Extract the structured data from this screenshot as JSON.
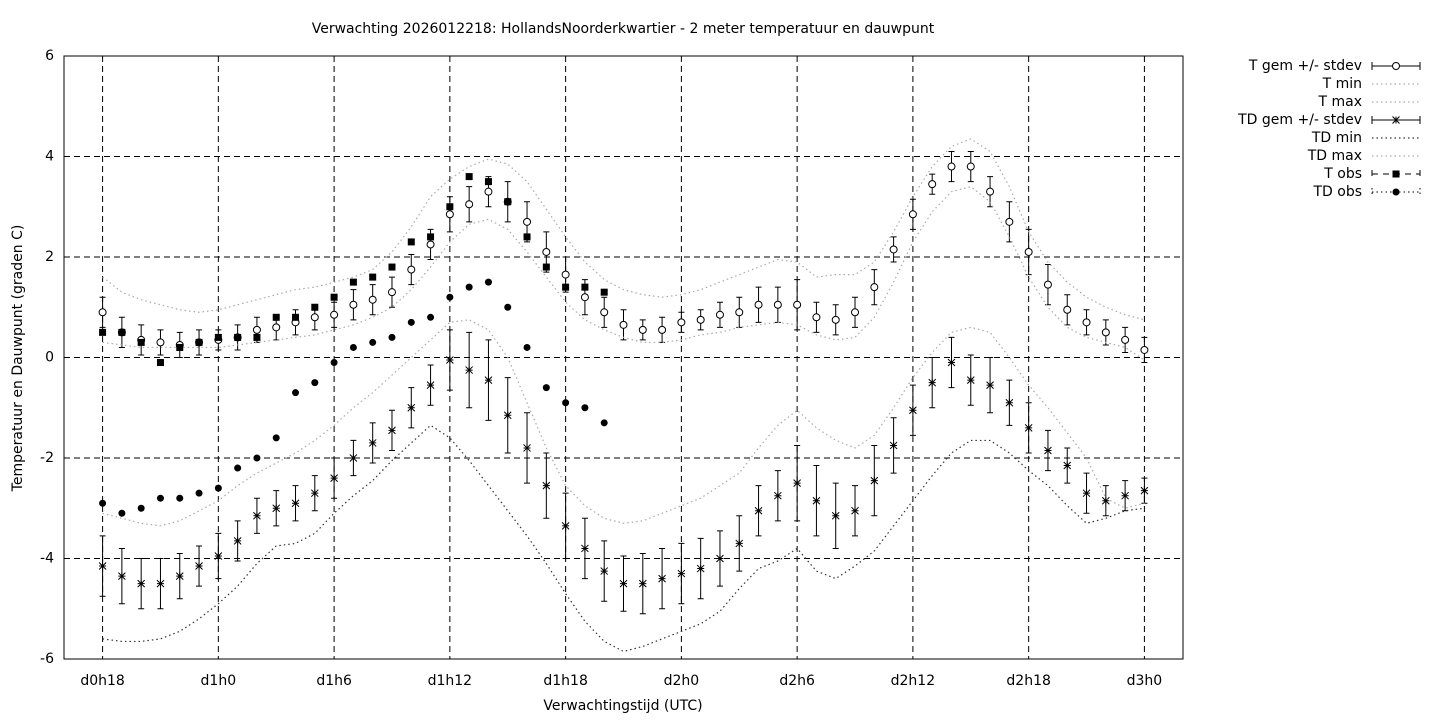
{
  "chart_data": {
    "type": "line",
    "title": "Verwachting 2026012218: HollandsNoorderkwartier - 2 meter temperatuur en dauwpunt",
    "x_label": "Verwachtingstijd (UTC)",
    "y_label": "Temperatuur en Dauwpunt (graden C)",
    "xlim": [
      16,
      74
    ],
    "ylim": [
      -6,
      6
    ],
    "xticks": [
      {
        "value": 18,
        "label": "d0h18"
      },
      {
        "value": 24,
        "label": "d1h0"
      },
      {
        "value": 30,
        "label": "d1h6"
      },
      {
        "value": 36,
        "label": "d1h12"
      },
      {
        "value": 42,
        "label": "d1h18"
      },
      {
        "value": 48,
        "label": "d2h0"
      },
      {
        "value": 54,
        "label": "d2h6"
      },
      {
        "value": 60,
        "label": "d2h12"
      },
      {
        "value": 66,
        "label": "d2h18"
      },
      {
        "value": 72,
        "label": "d3h0"
      }
    ],
    "yticks": [
      -6,
      -4,
      -2,
      0,
      2,
      4,
      6
    ],
    "grid": true,
    "legend": "outside-right-top",
    "x": [
      18,
      19,
      20,
      21,
      22,
      23,
      24,
      25,
      26,
      27,
      28,
      29,
      30,
      31,
      32,
      33,
      34,
      35,
      36,
      37,
      38,
      39,
      40,
      41,
      42,
      43,
      44,
      45,
      46,
      47,
      48,
      49,
      50,
      51,
      52,
      53,
      54,
      55,
      56,
      57,
      58,
      59,
      60,
      61,
      62,
      63,
      64,
      65,
      66,
      67,
      68,
      69,
      70,
      71,
      72
    ],
    "series": [
      {
        "name": "T gem +/- stdev",
        "color": "#000000",
        "style": "errorbar",
        "marker": "open-circle",
        "values": [
          0.9,
          0.5,
          0.35,
          0.3,
          0.25,
          0.3,
          0.35,
          0.4,
          0.55,
          0.6,
          0.7,
          0.8,
          0.85,
          1.05,
          1.15,
          1.3,
          1.75,
          2.25,
          2.85,
          3.05,
          3.3,
          3.1,
          2.7,
          2.1,
          1.65,
          1.2,
          0.9,
          0.65,
          0.55,
          0.55,
          0.7,
          0.75,
          0.85,
          0.9,
          1.05,
          1.05,
          1.05,
          0.8,
          0.75,
          0.9,
          1.4,
          2.15,
          2.85,
          3.45,
          3.8,
          3.8,
          3.3,
          2.7,
          2.1,
          1.45,
          0.95,
          0.7,
          0.5,
          0.35,
          0.15
        ],
        "errors": [
          0.3,
          0.3,
          0.3,
          0.25,
          0.25,
          0.25,
          0.2,
          0.25,
          0.25,
          0.25,
          0.25,
          0.25,
          0.25,
          0.3,
          0.3,
          0.3,
          0.3,
          0.3,
          0.35,
          0.35,
          0.3,
          0.4,
          0.4,
          0.4,
          0.35,
          0.35,
          0.3,
          0.3,
          0.2,
          0.25,
          0.2,
          0.2,
          0.25,
          0.3,
          0.35,
          0.35,
          0.5,
          0.3,
          0.3,
          0.3,
          0.35,
          0.25,
          0.3,
          0.2,
          0.3,
          0.3,
          0.3,
          0.4,
          0.45,
          0.4,
          0.3,
          0.25,
          0.25,
          0.25,
          0.25
        ]
      },
      {
        "name": "T min",
        "color": "#aaaaaa",
        "style": "dotted",
        "values": [
          0.3,
          0.25,
          0.2,
          0.2,
          0.2,
          0.2,
          0.2,
          0.25,
          0.3,
          0.35,
          0.4,
          0.45,
          0.55,
          0.65,
          0.8,
          1.0,
          1.35,
          1.8,
          2.3,
          2.65,
          2.75,
          2.55,
          2.1,
          1.6,
          1.1,
          0.75,
          0.55,
          0.4,
          0.3,
          0.3,
          0.35,
          0.45,
          0.5,
          0.6,
          0.65,
          0.7,
          0.65,
          0.45,
          0.35,
          0.4,
          0.8,
          1.5,
          2.3,
          2.9,
          3.3,
          3.4,
          3.1,
          2.4,
          1.6,
          1.0,
          0.6,
          0.4,
          0.3,
          0.2,
          -0.05
        ]
      },
      {
        "name": "T max",
        "color": "#aaaaaa",
        "style": "dotted",
        "values": [
          1.6,
          1.3,
          1.15,
          1.05,
          0.95,
          0.9,
          0.95,
          1.05,
          1.15,
          1.25,
          1.35,
          1.4,
          1.5,
          1.6,
          1.75,
          2.1,
          2.6,
          3.2,
          3.55,
          3.8,
          3.95,
          3.85,
          3.5,
          2.95,
          2.4,
          1.9,
          1.55,
          1.35,
          1.25,
          1.2,
          1.25,
          1.35,
          1.5,
          1.65,
          1.8,
          1.95,
          1.9,
          1.6,
          1.65,
          1.65,
          1.9,
          2.5,
          3.2,
          3.8,
          4.2,
          4.35,
          4.1,
          3.4,
          2.5,
          1.9,
          1.5,
          1.2,
          1.0,
          0.85,
          0.75
        ]
      },
      {
        "name": "TD gem +/- stdev",
        "color": "#000000",
        "style": "errorbar",
        "marker": "asterisk",
        "values": [
          -4.15,
          -4.35,
          -4.5,
          -4.5,
          -4.35,
          -4.15,
          -3.95,
          -3.65,
          -3.15,
          -3.0,
          -2.9,
          -2.7,
          -2.4,
          -2.0,
          -1.7,
          -1.45,
          -1.0,
          -0.55,
          -0.05,
          -0.25,
          -0.45,
          -1.15,
          -1.8,
          -2.55,
          -3.35,
          -3.8,
          -4.25,
          -4.5,
          -4.5,
          -4.4,
          -4.3,
          -4.2,
          -4.0,
          -3.7,
          -3.05,
          -2.75,
          -2.5,
          -2.85,
          -3.15,
          -3.05,
          -2.45,
          -1.75,
          -1.05,
          -0.5,
          -0.1,
          -0.45,
          -0.55,
          -0.9,
          -1.4,
          -1.85,
          -2.15,
          -2.7,
          -2.85,
          -2.75,
          -2.65
        ],
        "errors": [
          0.6,
          0.55,
          0.5,
          0.5,
          0.45,
          0.4,
          0.45,
          0.4,
          0.35,
          0.35,
          0.35,
          0.35,
          0.4,
          0.35,
          0.4,
          0.4,
          0.4,
          0.4,
          0.6,
          0.75,
          0.8,
          0.75,
          0.7,
          0.65,
          0.65,
          0.6,
          0.6,
          0.55,
          0.6,
          0.6,
          0.6,
          0.6,
          0.55,
          0.55,
          0.5,
          0.5,
          0.75,
          0.7,
          0.65,
          0.5,
          0.7,
          0.55,
          0.5,
          0.5,
          0.5,
          0.5,
          0.55,
          0.45,
          0.5,
          0.4,
          0.35,
          0.4,
          0.3,
          0.3,
          0.25
        ]
      },
      {
        "name": "TD min",
        "color": "#333333",
        "style": "dotted",
        "values": [
          -5.6,
          -5.65,
          -5.65,
          -5.6,
          -5.45,
          -5.2,
          -4.9,
          -4.55,
          -4.1,
          -3.75,
          -3.7,
          -3.5,
          -3.1,
          -2.75,
          -2.45,
          -2.05,
          -1.7,
          -1.35,
          -1.6,
          -2.05,
          -2.55,
          -3.05,
          -3.55,
          -4.1,
          -4.7,
          -5.25,
          -5.65,
          -5.85,
          -5.75,
          -5.6,
          -5.45,
          -5.3,
          -5.05,
          -4.6,
          -4.2,
          -4.05,
          -3.8,
          -4.25,
          -4.4,
          -4.15,
          -3.85,
          -3.35,
          -2.85,
          -2.35,
          -1.9,
          -1.65,
          -1.65,
          -1.9,
          -2.25,
          -2.55,
          -2.95,
          -3.3,
          -3.2,
          -3.05,
          -3.0
        ]
      },
      {
        "name": "TD max",
        "color": "#aaaaaa",
        "style": "dotted",
        "values": [
          -3.1,
          -3.2,
          -3.3,
          -3.35,
          -3.25,
          -3.05,
          -2.85,
          -2.55,
          -2.3,
          -2.1,
          -1.9,
          -1.65,
          -1.35,
          -1.0,
          -0.7,
          -0.35,
          0.0,
          0.35,
          0.7,
          0.75,
          0.55,
          0.0,
          -0.9,
          -1.8,
          -2.55,
          -2.95,
          -3.2,
          -3.3,
          -3.25,
          -3.1,
          -2.95,
          -2.8,
          -2.55,
          -2.3,
          -1.8,
          -1.35,
          -1.05,
          -1.4,
          -1.65,
          -1.8,
          -1.55,
          -1.0,
          -0.4,
          0.1,
          0.5,
          0.6,
          0.5,
          0.0,
          -0.55,
          -1.0,
          -1.5,
          -2.0,
          -2.8,
          -3.0,
          -2.9
        ]
      },
      {
        "name": "T obs",
        "color": "#000000",
        "style": "points",
        "marker": "square",
        "values": [
          0.5,
          0.5,
          0.3,
          -0.1,
          0.2,
          0.3,
          0.4,
          0.4,
          0.4,
          0.8,
          0.8,
          1.0,
          1.2,
          1.5,
          1.6,
          1.8,
          2.3,
          2.4,
          3.0,
          3.6,
          3.5,
          3.1,
          2.4,
          1.8,
          1.4,
          1.4,
          1.3,
          null,
          null,
          null,
          null,
          null,
          null,
          null,
          null,
          null,
          null,
          null,
          null,
          null,
          null,
          null,
          null,
          null,
          null,
          null,
          null,
          null,
          null,
          null,
          null,
          null,
          null,
          null,
          null
        ]
      },
      {
        "name": "TD obs",
        "color": "#000000",
        "style": "points",
        "marker": "dot",
        "values": [
          -2.9,
          -3.1,
          -3.0,
          -2.8,
          -2.8,
          -2.7,
          -2.6,
          -2.2,
          -2.0,
          -1.6,
          -0.7,
          -0.5,
          -0.1,
          0.2,
          0.3,
          0.4,
          0.7,
          0.8,
          1.2,
          1.4,
          1.5,
          1.0,
          0.2,
          -0.6,
          -0.9,
          -1.0,
          -1.3,
          null,
          null,
          null,
          null,
          null,
          null,
          null,
          null,
          null,
          null,
          null,
          null,
          null,
          null,
          null,
          null,
          null,
          null,
          null,
          null,
          null,
          null,
          null,
          null,
          null,
          null,
          null,
          null
        ]
      }
    ]
  }
}
